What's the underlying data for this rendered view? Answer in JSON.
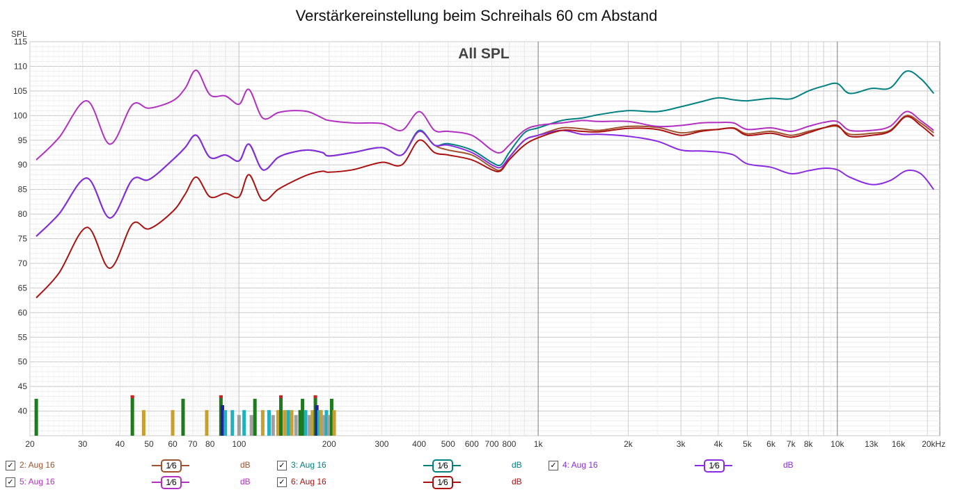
{
  "title": "Verstärkereinstellung beim Schreihals 60 cm Abstand",
  "chart_data": {
    "type": "line",
    "title": "Verstärkereinstellung beim Schreihals 60 cm Abstand",
    "subtitle": "All SPL",
    "ylabel": "SPL",
    "xlabel": "",
    "x_scale": "log",
    "xlim": [
      20,
      22000
    ],
    "ylim": [
      35,
      115
    ],
    "y_ticks": [
      40,
      45,
      50,
      55,
      60,
      65,
      70,
      75,
      80,
      85,
      90,
      95,
      100,
      105,
      110,
      115
    ],
    "x_ticks": [
      {
        "v": 20,
        "label": "20"
      },
      {
        "v": 30,
        "label": "30"
      },
      {
        "v": 40,
        "label": "40"
      },
      {
        "v": 50,
        "label": "50"
      },
      {
        "v": 60,
        "label": "60"
      },
      {
        "v": 70,
        "label": "70"
      },
      {
        "v": 80,
        "label": "80"
      },
      {
        "v": 100,
        "label": "100"
      },
      {
        "v": 200,
        "label": "200"
      },
      {
        "v": 300,
        "label": "300"
      },
      {
        "v": 400,
        "label": "400"
      },
      {
        "v": 500,
        "label": "500"
      },
      {
        "v": 600,
        "label": "600"
      },
      {
        "v": 700,
        "label": "700"
      },
      {
        "v": 800,
        "label": "800"
      },
      {
        "v": 1000,
        "label": "1k"
      },
      {
        "v": 2000,
        "label": "2k"
      },
      {
        "v": 3000,
        "label": "3k"
      },
      {
        "v": 4000,
        "label": "4k"
      },
      {
        "v": 5000,
        "label": "5k"
      },
      {
        "v": 6000,
        "label": "6k"
      },
      {
        "v": 7000,
        "label": "7k"
      },
      {
        "v": 8000,
        "label": "8k"
      },
      {
        "v": 10000,
        "label": "10k"
      },
      {
        "v": 13000,
        "label": "13k"
      },
      {
        "v": 16000,
        "label": "16k"
      },
      {
        "v": 20000,
        "label": "20kHz"
      }
    ],
    "grid": true,
    "x": [
      21,
      25,
      31,
      37,
      44,
      50,
      60,
      66,
      72,
      80,
      90,
      100,
      108,
      120,
      135,
      150,
      170,
      190,
      200,
      240,
      300,
      350,
      400,
      450,
      500,
      600,
      700,
      750,
      800,
      900,
      1000,
      1200,
      1400,
      1600,
      2000,
      2500,
      3000,
      3500,
      4000,
      4500,
      5000,
      6000,
      7000,
      8000,
      9000,
      10000,
      11000,
      13000,
      15000,
      17000,
      19000,
      21000
    ],
    "series": [
      {
        "name": "2: Aug 16",
        "color": "#a0522d",
        "smoothing": "1/6",
        "unit": "dB",
        "values": [
          75.5,
          80,
          87.3,
          79.2,
          87,
          87,
          91,
          93.5,
          96,
          91.5,
          92,
          90.8,
          94.2,
          89,
          91.5,
          92.5,
          93,
          92.5,
          91.8,
          92.5,
          93.5,
          92,
          96.8,
          94,
          93,
          92,
          89.5,
          89,
          91.5,
          95,
          96,
          97.5,
          97.3,
          97,
          97.8,
          97.6,
          96.5,
          97,
          97.2,
          97.5,
          96.3,
          96.8,
          96.0,
          96.8,
          97.5,
          97.8,
          96.2,
          96.4,
          97.0,
          100.0,
          98.5,
          96.5
        ]
      },
      {
        "name": "3: Aug 16",
        "color": "#008080",
        "smoothing": "1/6",
        "unit": "dB",
        "values": [
          75.5,
          80,
          87.3,
          79.2,
          87,
          87,
          91,
          93.5,
          96,
          91.5,
          92,
          90.8,
          94.2,
          89,
          91.5,
          92.5,
          93,
          92.5,
          91.8,
          92.5,
          93.5,
          92,
          97,
          94,
          94.3,
          93,
          90.5,
          90,
          92.5,
          96.5,
          97.5,
          99,
          99.5,
          100.2,
          101,
          100.8,
          101.8,
          102.8,
          103.6,
          103.2,
          103,
          103.5,
          103.4,
          105,
          106,
          106.5,
          104.5,
          105.5,
          105.6,
          109,
          107.5,
          104.5
        ]
      },
      {
        "name": "4: Aug 16",
        "color": "#8a2be2",
        "smoothing": "1/6",
        "unit": "dB",
        "values": [
          75.5,
          80,
          87.3,
          79.2,
          87,
          87,
          91,
          93.5,
          96,
          91.5,
          92,
          90.8,
          94.2,
          89,
          91.5,
          92.5,
          93,
          92.5,
          91.8,
          92.5,
          93.5,
          92,
          96.8,
          94,
          94,
          92.5,
          90,
          89.5,
          91.5,
          95,
          96,
          97,
          96.2,
          96.2,
          95.8,
          94.8,
          93,
          92.8,
          92.6,
          92,
          90.2,
          89.5,
          88.2,
          88.8,
          89.3,
          89,
          87.5,
          86,
          86.8,
          88.8,
          88.2,
          85
        ]
      },
      {
        "name": "5: Aug 16",
        "color": "#b22fc2",
        "smoothing": "1/6",
        "unit": "dB",
        "values": [
          91,
          95.5,
          103,
          94.2,
          102.2,
          101.5,
          103,
          105.5,
          109.2,
          104.2,
          104,
          102.3,
          105.3,
          99.5,
          100.6,
          101,
          100.8,
          99.5,
          99,
          98.5,
          98.4,
          97,
          100.8,
          97,
          96.8,
          96,
          93,
          92.5,
          94,
          97,
          98,
          98.5,
          99,
          98.8,
          98.8,
          97.8,
          98,
          98.5,
          98.6,
          98.5,
          97.2,
          97.5,
          96.8,
          97.8,
          98.6,
          98.8,
          97,
          97,
          97.8,
          100.8,
          99,
          97
        ]
      },
      {
        "name": "6: Aug 16",
        "color": "#aa1111",
        "smoothing": "1/6",
        "unit": "dB",
        "values": [
          63,
          68,
          77.3,
          69,
          78,
          77,
          80.5,
          84,
          87.5,
          83.5,
          84.2,
          83.5,
          88,
          82.8,
          85,
          86.5,
          88,
          88.7,
          88.5,
          89,
          90.5,
          90,
          95,
          92.5,
          92,
          91,
          89,
          88.8,
          91,
          94,
          95.5,
          97,
          96.8,
          96.7,
          97.4,
          97.2,
          96,
          96.8,
          97.2,
          97.4,
          96,
          96.4,
          95.6,
          96.5,
          97.5,
          98,
          95.8,
          96,
          96.8,
          99.8,
          98,
          95.8
        ]
      }
    ],
    "peak_bars": [
      {
        "x": 21,
        "top": 42.5,
        "color": "#1f7a1f",
        "red_top": false
      },
      {
        "x": 44,
        "top": 43.2,
        "color": "#1f7a1f",
        "red_top": true
      },
      {
        "x": 48,
        "top": 40.2,
        "color": "#c8a030",
        "red_top": false
      },
      {
        "x": 60,
        "top": 40.2,
        "color": "#c8a030",
        "red_top": false
      },
      {
        "x": 65,
        "top": 42.5,
        "color": "#1f7a1f",
        "red_top": false
      },
      {
        "x": 78,
        "top": 40.2,
        "color": "#c8a030",
        "red_top": false
      },
      {
        "x": 87,
        "top": 43.2,
        "color": "#1f7a1f",
        "red_top": true
      },
      {
        "x": 88,
        "top": 41.2,
        "color": "#2020a0",
        "red_top": false
      },
      {
        "x": 90,
        "top": 40.2,
        "color": "#20b0c0",
        "red_top": false
      },
      {
        "x": 95,
        "top": 40.2,
        "color": "#20b0c0",
        "red_top": false
      },
      {
        "x": 100,
        "top": 39.2,
        "color": "#a0a0a0",
        "red_top": false
      },
      {
        "x": 104,
        "top": 40.2,
        "color": "#20b0c0",
        "red_top": false
      },
      {
        "x": 110,
        "top": 39.2,
        "color": "#a0a0a0",
        "red_top": false
      },
      {
        "x": 113,
        "top": 42.5,
        "color": "#1f7a1f",
        "red_top": false
      },
      {
        "x": 120,
        "top": 40.2,
        "color": "#c8a030",
        "red_top": false
      },
      {
        "x": 126,
        "top": 40.2,
        "color": "#20b0c0",
        "red_top": false
      },
      {
        "x": 130,
        "top": 39.2,
        "color": "#a0a0a0",
        "red_top": false
      },
      {
        "x": 135,
        "top": 40.2,
        "color": "#c8a030",
        "red_top": false
      },
      {
        "x": 138,
        "top": 43.2,
        "color": "#1f7a1f",
        "red_top": true
      },
      {
        "x": 142,
        "top": 40.2,
        "color": "#c8a030",
        "red_top": false
      },
      {
        "x": 146,
        "top": 40.2,
        "color": "#20b0c0",
        "red_top": false
      },
      {
        "x": 150,
        "top": 40.2,
        "color": "#c8a030",
        "red_top": false
      },
      {
        "x": 155,
        "top": 39.2,
        "color": "#a0a0a0",
        "red_top": false
      },
      {
        "x": 160,
        "top": 40.2,
        "color": "#1f7a1f",
        "red_top": false
      },
      {
        "x": 163,
        "top": 42.5,
        "color": "#1f7a1f",
        "red_top": false
      },
      {
        "x": 167,
        "top": 40.2,
        "color": "#20b0c0",
        "red_top": false
      },
      {
        "x": 172,
        "top": 39.2,
        "color": "#a0a0a0",
        "red_top": false
      },
      {
        "x": 176,
        "top": 40.2,
        "color": "#c8a030",
        "red_top": false
      },
      {
        "x": 180,
        "top": 43.2,
        "color": "#1f7a1f",
        "red_top": true
      },
      {
        "x": 182,
        "top": 41.2,
        "color": "#2020a0",
        "red_top": false
      },
      {
        "x": 185,
        "top": 40.2,
        "color": "#20b0c0",
        "red_top": false
      },
      {
        "x": 188,
        "top": 40.2,
        "color": "#c8a030",
        "red_top": false
      },
      {
        "x": 192,
        "top": 39.2,
        "color": "#a0a0a0",
        "red_top": false
      },
      {
        "x": 196,
        "top": 40.2,
        "color": "#20b0c0",
        "red_top": false
      },
      {
        "x": 200,
        "top": 39.2,
        "color": "#a0a0a0",
        "red_top": false
      },
      {
        "x": 204,
        "top": 42.5,
        "color": "#1f7a1f",
        "red_top": false
      },
      {
        "x": 208,
        "top": 40.2,
        "color": "#c8a030",
        "red_top": false
      }
    ]
  },
  "legend": [
    {
      "checked": "✓",
      "name": "2: Aug 16",
      "smoothing": "1⁄6",
      "unit": "dB",
      "color": "#a0522d"
    },
    {
      "checked": "✓",
      "name": "3: Aug 16",
      "smoothing": "1⁄6",
      "unit": "dB",
      "color": "#008080"
    },
    {
      "checked": "✓",
      "name": "4: Aug 16",
      "smoothing": "1⁄6",
      "unit": "dB",
      "color": "#8a2be2"
    },
    {
      "checked": "✓",
      "name": "5: Aug 16",
      "smoothing": "1⁄6",
      "unit": "dB",
      "color": "#b22fc2"
    },
    {
      "checked": "✓",
      "name": "6: Aug 16",
      "smoothing": "1⁄6",
      "unit": "dB",
      "color": "#aa1111"
    }
  ]
}
